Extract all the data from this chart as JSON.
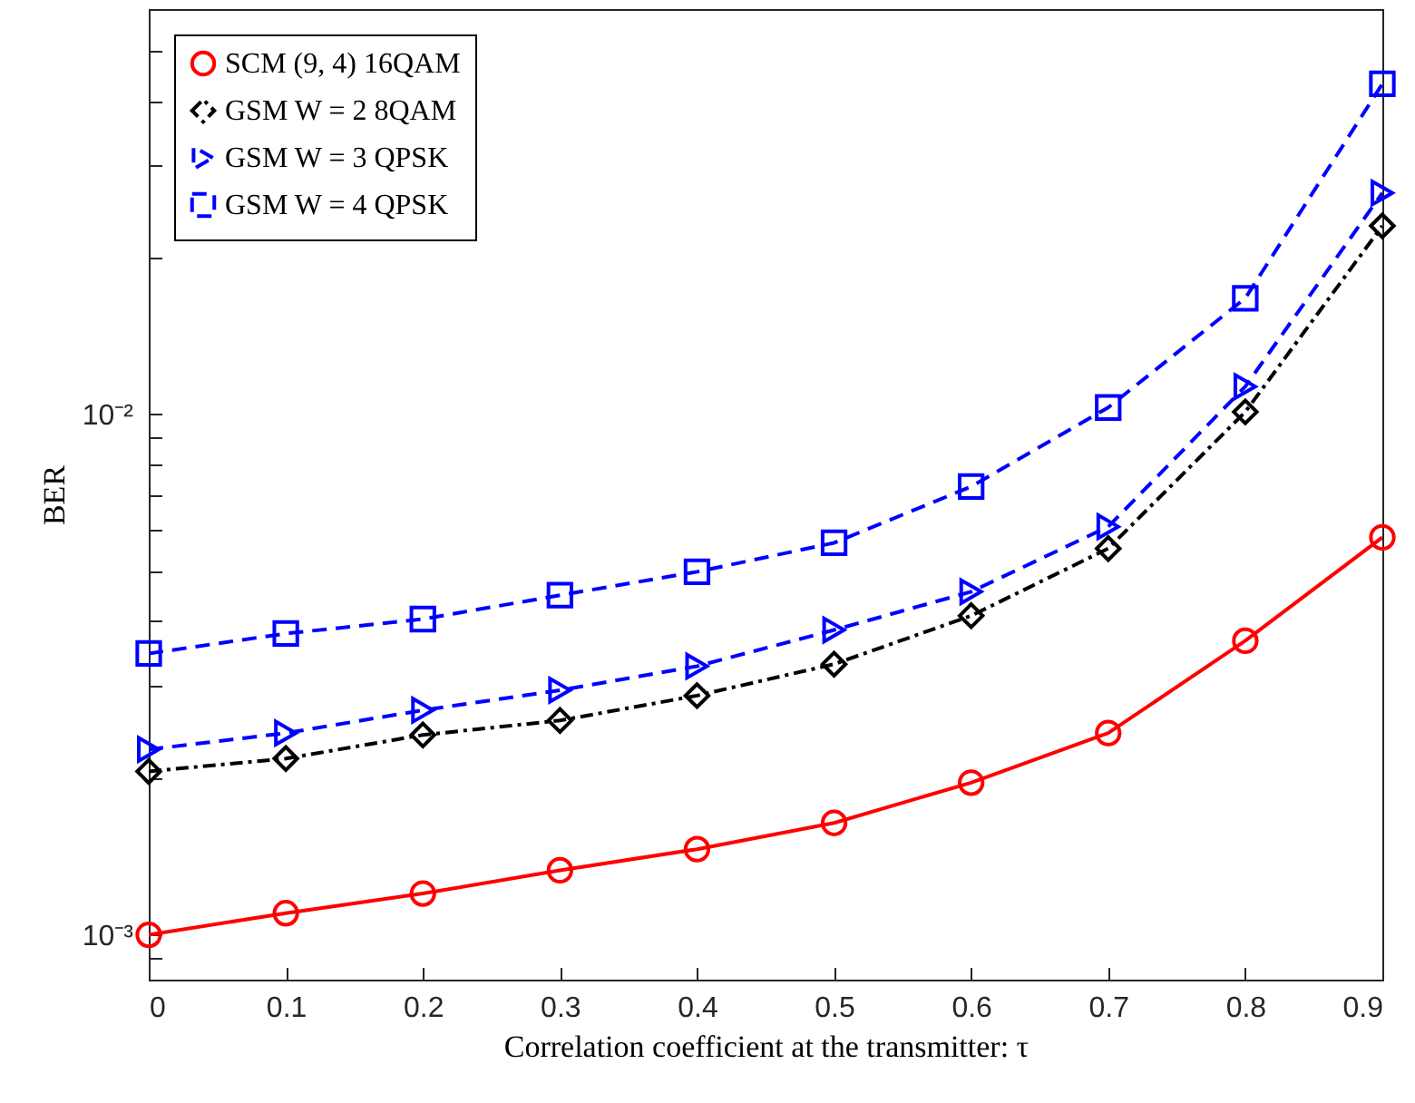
{
  "chart_data": {
    "type": "line",
    "xlabel": "Correlation coefficient at the transmitter: τ",
    "ylabel": "BER",
    "x": [
      0,
      0.1,
      0.2,
      0.3,
      0.4,
      0.5,
      0.6,
      0.7,
      0.8,
      0.9
    ],
    "series": [
      {
        "name": "SCM (9, 4) 16QAM",
        "color": "#ff0000",
        "marker": "circle",
        "line_style": "solid",
        "values": [
          0.001,
          0.0011,
          0.0012,
          0.00133,
          0.00146,
          0.00164,
          0.00196,
          0.00244,
          0.00367,
          0.0058
        ]
      },
      {
        "name": "GSM W = 2 8QAM",
        "color": "#000000",
        "marker": "diamond",
        "line_style": "dashdot",
        "values": [
          0.00206,
          0.00218,
          0.00242,
          0.00258,
          0.00288,
          0.00331,
          0.0041,
          0.00552,
          0.0101,
          0.023
        ]
      },
      {
        "name": "GSM W = 3 QPSK",
        "color": "#0000ff",
        "marker": "triangle",
        "line_style": "dashed",
        "values": [
          0.00227,
          0.00244,
          0.0027,
          0.00295,
          0.00328,
          0.00385,
          0.00456,
          0.00608,
          0.0113,
          0.0266
        ]
      },
      {
        "name": "GSM W = 4 QPSK",
        "color": "#0000ff",
        "marker": "square",
        "line_style": "dashed",
        "values": [
          0.00347,
          0.00379,
          0.00404,
          0.00449,
          0.00498,
          0.00566,
          0.00726,
          0.0103,
          0.0167,
          0.0431
        ]
      }
    ],
    "log": "y",
    "xlim": [
      0,
      0.9
    ],
    "ylim": [
      0.00082,
      0.06
    ],
    "xticks": [
      0,
      0.1,
      0.2,
      0.3,
      0.4,
      0.5,
      0.6,
      0.7,
      0.8,
      0.9
    ],
    "yticks": [
      {
        "value": 0.0009,
        "label": null
      },
      {
        "value": 0.001,
        "label": "10⁻³"
      },
      {
        "value": 0.002,
        "label": null
      },
      {
        "value": 0.003,
        "label": null
      },
      {
        "value": 0.004,
        "label": null
      },
      {
        "value": 0.005,
        "label": null
      },
      {
        "value": 0.006,
        "label": null
      },
      {
        "value": 0.007,
        "label": null
      },
      {
        "value": 0.008,
        "label": null
      },
      {
        "value": 0.009,
        "label": null
      },
      {
        "value": 0.01,
        "label": "10⁻²"
      },
      {
        "value": 0.02,
        "label": null
      },
      {
        "value": 0.03,
        "label": null
      },
      {
        "value": 0.04,
        "label": null
      },
      {
        "value": 0.05,
        "label": null
      }
    ],
    "grid": false,
    "legend": "top left"
  }
}
